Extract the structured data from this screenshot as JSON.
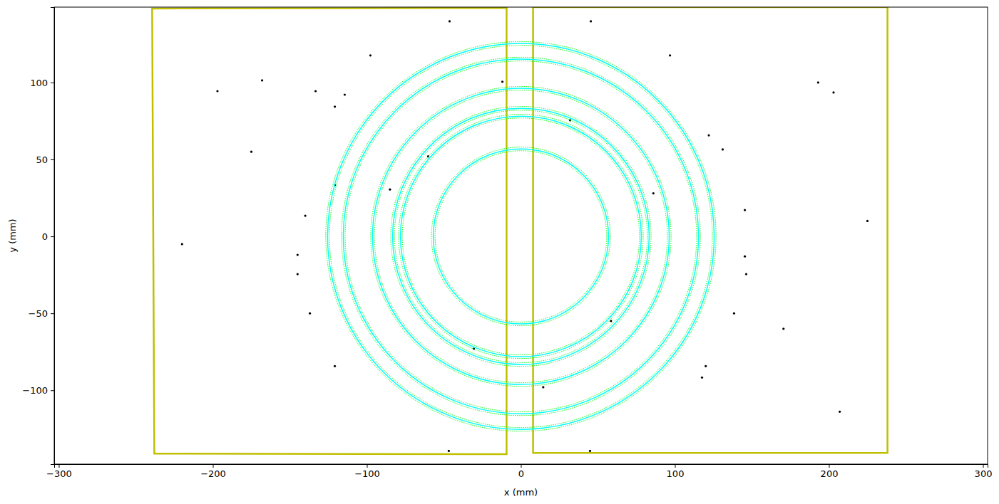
{
  "chart_data": {
    "type": "scatter",
    "xlabel": "x (mm)",
    "ylabel": "y (mm)",
    "xlim": [
      -303,
      303
    ],
    "ylim": [
      -148,
      149
    ],
    "xticks": [
      {
        "value": -300,
        "label": "−300"
      },
      {
        "value": -200,
        "label": "−200"
      },
      {
        "value": -100,
        "label": "−100"
      },
      0,
      100,
      200,
      300
    ],
    "yticks": [
      {
        "value": -100,
        "label": "−100"
      },
      {
        "value": -50,
        "label": "−50"
      },
      0,
      50,
      100
    ],
    "grid": false,
    "series": [
      {
        "type": "scatter",
        "color": "#000000",
        "marker": "point",
        "x": [
          -46.3,
          45.4,
          -133.3,
          -114.4,
          -168.0,
          203.0,
          -145.0,
          -145.0,
          -140.0,
          145.4,
          145.4,
          146.3,
          -137.0,
          138.4,
          -120.8,
          120.0,
          207.0,
          -46.8,
          44.9,
          -197.0,
          122.0,
          -120.8,
          131.0,
          193.0,
          96.8,
          -97.7,
          -120.8,
          117.6,
          -60.2,
          58.5,
          -85.0,
          86.0,
          -30.5,
          32.0,
          170.5,
          -175.0,
          -220.0,
          225.0,
          -12.0,
          14.5
        ],
        "values": [
          139.8,
          139.8,
          94.4,
          92.1,
          101.4,
          93.5,
          -12.0,
          -24.5,
          13.4,
          17.1,
          -13.0,
          -24.5,
          -50.0,
          -50.0,
          -84.3,
          -84.3,
          -113.9,
          -139.4,
          -139.4,
          94.4,
          65.7,
          84.3,
          56.5,
          100.0,
          117.6,
          117.6,
          33.3,
          -91.7,
          52.0,
          -55.0,
          30.5,
          28.0,
          -73.0,
          75.5,
          -60.0,
          55.0,
          -5.0,
          10.0,
          100.5,
          -98.0
        ]
      },
      {
        "type": "polygon",
        "color": "#bfbf00",
        "line_style": "solid",
        "x": [
          -239.4,
          -9.3,
          -9.3,
          -238.0
        ],
        "values": [
          148.1,
          148.5,
          -141.5,
          -141.2
        ]
      },
      {
        "type": "polygon",
        "color": "#bfbf00",
        "line_style": "solid",
        "x": [
          7.9,
          238.0,
          238.0,
          7.9
        ],
        "values": [
          149.0,
          149.0,
          -140.7,
          -140.7
        ]
      },
      {
        "type": "ring",
        "color": "#00ffff",
        "line_style": "solid",
        "center": [
          0,
          0
        ],
        "values": [
          125.5,
          115.3,
          96.3,
          83.3,
          78.2,
          56.9
        ]
      },
      {
        "type": "ring",
        "color": "#00ff00",
        "line_style": "dotted",
        "center": [
          0,
          0
        ],
        "values": [
          124.3,
          114.1,
          95.1,
          82.1,
          77.0,
          55.7
        ]
      },
      {
        "type": "ring",
        "color": "#00ff00",
        "line_style": "dotted",
        "center": [
          0,
          0
        ],
        "values": [
          126.7,
          116.5,
          97.5,
          84.5,
          79.4,
          58.1
        ]
      }
    ]
  }
}
